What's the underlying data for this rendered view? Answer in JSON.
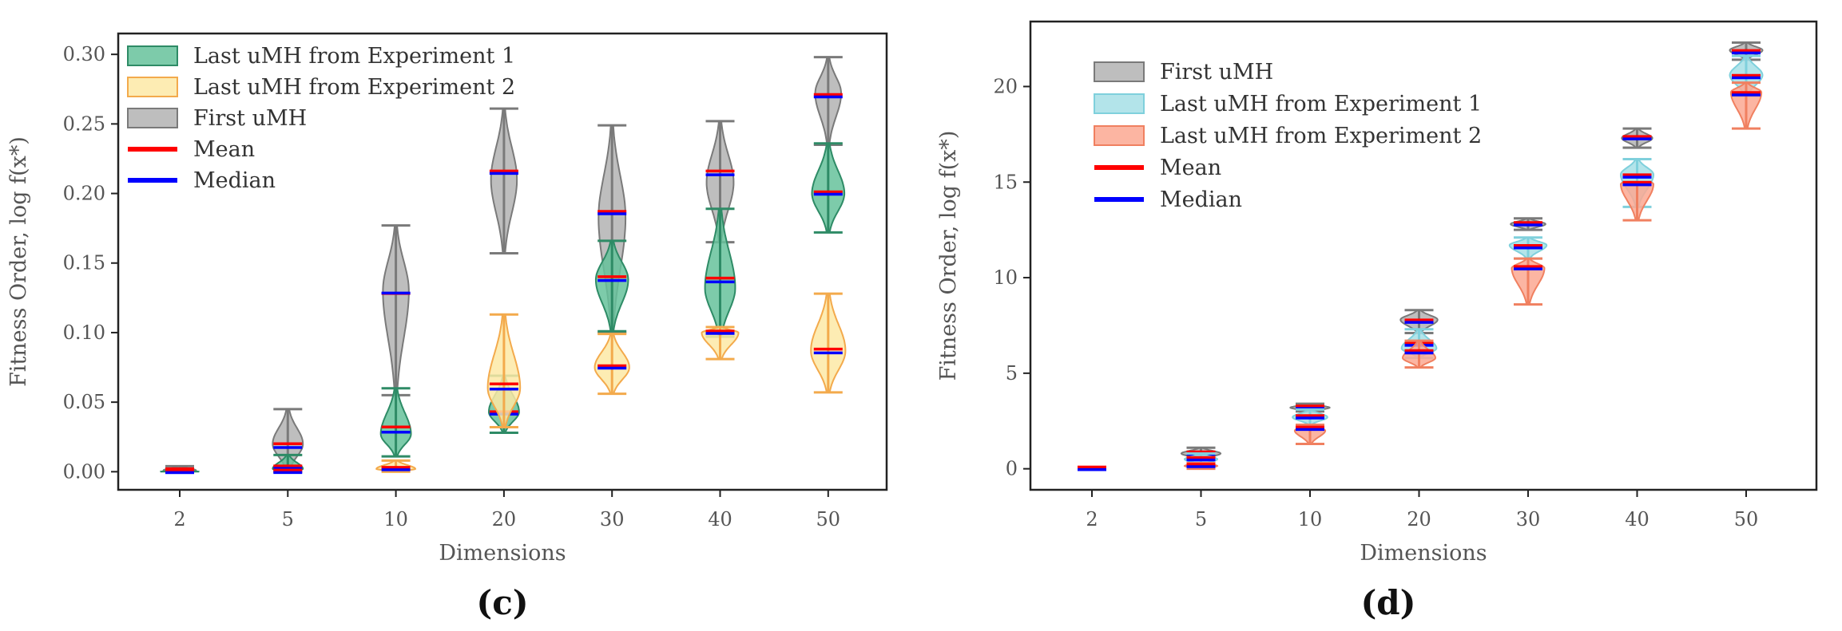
{
  "colors": {
    "grey_fill": "#b3b3b3",
    "grey_edge": "#7a7a7a",
    "green_fill": "#66c29b",
    "green_edge": "#2e8b66",
    "yellow_fill": "#fde9a6",
    "yellow_edge": "#f3aa4c",
    "cyan_fill": "#a6dfe6",
    "cyan_edge": "#7fd0dc",
    "salmon_fill": "#fca892",
    "salmon_edge": "#f08060",
    "mean": "#ff0000",
    "median": "#0000ff",
    "axis": "#222222",
    "text": "#555555"
  },
  "chart_data": [
    {
      "id": "c",
      "type": "violin",
      "panel_label": "(c)",
      "xlabel": "Dimensions",
      "ylabel": "Fitness Order, log f(x*)",
      "categories": [
        "2",
        "5",
        "10",
        "20",
        "30",
        "40",
        "50"
      ],
      "ylim": [
        -0.013,
        0.315
      ],
      "yticks": [
        0.0,
        0.05,
        0.1,
        0.15,
        0.2,
        0.25,
        0.3
      ],
      "ytick_labels": [
        "0.00",
        "0.05",
        "0.10",
        "0.15",
        "0.20",
        "0.25",
        "0.30"
      ],
      "legend_position": "top-left",
      "legend": [
        {
          "label": "Last uMH from Experiment 1",
          "kind": "patch",
          "color_key": "green"
        },
        {
          "label": "Last uMH from Experiment 2",
          "kind": "patch",
          "color_key": "yellow"
        },
        {
          "label": "First uMH",
          "kind": "patch",
          "color_key": "grey"
        },
        {
          "label": "Mean",
          "kind": "line",
          "color_key": "mean"
        },
        {
          "label": "Median",
          "kind": "line",
          "color_key": "median"
        }
      ],
      "series": [
        {
          "name": "First uMH",
          "color_key": "grey",
          "min": [
            0.0,
            0.0,
            0.055,
            0.157,
            0.1,
            0.165,
            0.235
          ],
          "max": [
            0.004,
            0.045,
            0.177,
            0.261,
            0.249,
            0.252,
            0.298
          ],
          "mean": [
            0.001,
            0.019,
            0.127,
            0.215,
            0.186,
            0.215,
            0.27
          ],
          "median": [
            0.001,
            0.018,
            0.129,
            0.215,
            0.186,
            0.214,
            0.27
          ],
          "peak": [
            0.001,
            0.02,
            0.13,
            0.21,
            0.183,
            0.208,
            0.272
          ],
          "halfwidth": [
            0.3,
            0.28,
            0.24,
            0.24,
            0.25,
            0.25,
            0.24
          ]
        },
        {
          "name": "Last uMH from Experiment 1",
          "color_key": "green",
          "min": [
            0.0,
            0.0,
            0.011,
            0.028,
            0.101,
            0.097,
            0.172
          ],
          "max": [
            0.001,
            0.012,
            0.06,
            0.069,
            0.166,
            0.189,
            0.236
          ],
          "mean": [
            0.0,
            0.003,
            0.031,
            0.042,
            0.139,
            0.138,
            0.2
          ],
          "median": [
            0.0,
            0.003,
            0.029,
            0.042,
            0.138,
            0.137,
            0.2
          ],
          "peak": [
            0.0,
            0.002,
            0.027,
            0.043,
            0.138,
            0.132,
            0.2
          ],
          "halfwidth": [
            0.36,
            0.28,
            0.28,
            0.28,
            0.3,
            0.28,
            0.3
          ]
        },
        {
          "name": "Last uMH from Experiment 2",
          "color_key": "yellow",
          "min": [
            0.0,
            0.0,
            0.0,
            0.032,
            0.056,
            0.081,
            0.057
          ],
          "max": [
            0.0,
            0.0,
            0.008,
            0.113,
            0.099,
            0.104,
            0.128
          ],
          "mean": [
            0.0,
            0.0,
            0.002,
            0.062,
            0.075,
            0.1,
            0.087
          ],
          "median": [
            0.0,
            0.0,
            0.002,
            0.06,
            0.075,
            0.1,
            0.086
          ],
          "peak": [
            0.0,
            0.0,
            0.002,
            0.06,
            0.075,
            0.1,
            0.087
          ],
          "halfwidth": [
            0.0,
            0.0,
            0.36,
            0.3,
            0.32,
            0.34,
            0.32
          ]
        }
      ]
    },
    {
      "id": "d",
      "type": "violin",
      "panel_label": "(d)",
      "xlabel": "Dimensions",
      "ylabel": "Fitness Order, log f(x*)",
      "categories": [
        "2",
        "5",
        "10",
        "20",
        "30",
        "40",
        "50"
      ],
      "ylim": [
        -1.1,
        23.4
      ],
      "yticks": [
        0,
        5,
        10,
        15,
        20
      ],
      "ytick_labels": [
        "0",
        "5",
        "10",
        "15",
        "20"
      ],
      "legend_position": "upper-left",
      "legend": [
        {
          "label": "First uMH",
          "kind": "patch",
          "color_key": "grey"
        },
        {
          "label": "Last uMH from Experiment 1",
          "kind": "patch",
          "color_key": "cyan"
        },
        {
          "label": "Last uMH from Experiment 2",
          "kind": "patch",
          "color_key": "salmon"
        },
        {
          "label": "Mean",
          "kind": "line",
          "color_key": "mean"
        },
        {
          "label": "Median",
          "kind": "line",
          "color_key": "median"
        }
      ],
      "series": [
        {
          "name": "First uMH",
          "color_key": "grey",
          "min": [
            0.0,
            0.5,
            3.0,
            7.1,
            12.5,
            16.8,
            21.4
          ],
          "max": [
            0.05,
            1.1,
            3.4,
            8.3,
            13.1,
            17.8,
            22.3
          ],
          "mean": [
            0.0,
            0.8,
            3.2,
            7.7,
            12.8,
            17.3,
            21.8
          ],
          "median": [
            0.0,
            0.8,
            3.2,
            7.7,
            12.8,
            17.3,
            21.8
          ],
          "peak": [
            0.0,
            0.8,
            3.2,
            7.8,
            12.8,
            17.3,
            21.9
          ],
          "halfwidth": [
            0.34,
            0.36,
            0.36,
            0.34,
            0.32,
            0.28,
            0.3
          ]
        },
        {
          "name": "Last uMH from Experiment 1",
          "color_key": "cyan",
          "min": [
            0.0,
            0.2,
            2.3,
            5.8,
            11.0,
            13.7,
            19.5
          ],
          "max": [
            0.05,
            0.8,
            3.1,
            7.3,
            12.1,
            16.2,
            21.6
          ],
          "mean": [
            0.0,
            0.5,
            2.7,
            6.5,
            11.6,
            15.3,
            20.5
          ],
          "median": [
            0.0,
            0.5,
            2.7,
            6.5,
            11.6,
            15.3,
            20.5
          ],
          "peak": [
            0.0,
            0.5,
            2.7,
            6.3,
            11.7,
            15.4,
            20.6
          ],
          "halfwidth": [
            0.34,
            0.3,
            0.32,
            0.32,
            0.34,
            0.3,
            0.3
          ]
        },
        {
          "name": "Last uMH from Experiment 2",
          "color_key": "salmon",
          "min": [
            0.0,
            0.0,
            1.3,
            5.3,
            8.6,
            13.0,
            17.8
          ],
          "max": [
            0.05,
            0.3,
            2.3,
            6.7,
            11.0,
            15.0,
            20.2
          ],
          "mean": [
            0.0,
            0.15,
            2.1,
            6.1,
            10.5,
            14.9,
            19.6
          ],
          "median": [
            0.0,
            0.15,
            2.1,
            6.1,
            10.5,
            14.9,
            19.6
          ],
          "peak": [
            0.0,
            0.15,
            2.0,
            5.8,
            10.5,
            14.9,
            19.7
          ],
          "halfwidth": [
            0.34,
            0.3,
            0.28,
            0.3,
            0.3,
            0.3,
            0.28
          ]
        }
      ]
    }
  ]
}
